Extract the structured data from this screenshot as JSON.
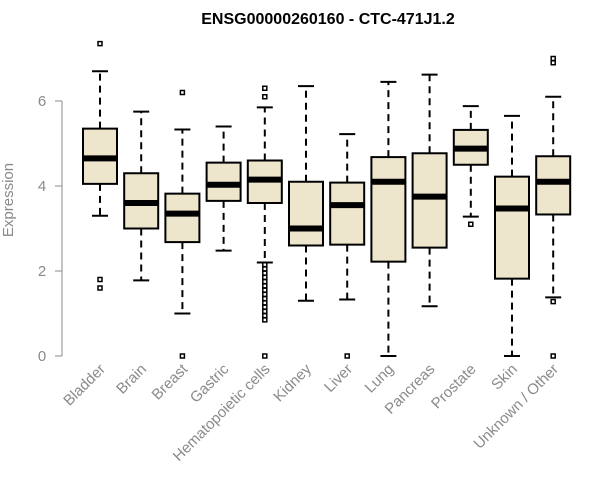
{
  "chart_data": {
    "type": "boxplot",
    "title": "ENSG00000260160 - CTC-471J1.2",
    "xlabel": "",
    "ylabel": "Expression",
    "ylim": [
      0,
      7.4
    ],
    "yticks": [
      0,
      2,
      4,
      6
    ],
    "box_color": "#ede6cc",
    "categories": [
      "Bladder",
      "Brain",
      "Breast",
      "Gastric",
      "Hematopoietic cells",
      "Kidney",
      "Liver",
      "Lung",
      "Pancreas",
      "Prostate",
      "Skin",
      "Unknown / Other"
    ],
    "boxes": [
      {
        "name": "Bladder",
        "whisker_low": 3.3,
        "q1": 4.05,
        "median": 4.65,
        "q3": 5.35,
        "whisker_high": 6.7,
        "outliers": [
          7.35,
          1.8,
          1.6
        ]
      },
      {
        "name": "Brain",
        "whisker_low": 1.78,
        "q1": 3.0,
        "median": 3.6,
        "q3": 4.3,
        "whisker_high": 5.75,
        "outliers": []
      },
      {
        "name": "Breast",
        "whisker_low": 1.0,
        "q1": 2.68,
        "median": 3.35,
        "q3": 3.82,
        "whisker_high": 5.33,
        "outliers": [
          6.2,
          0.0
        ]
      },
      {
        "name": "Gastric",
        "whisker_low": 2.48,
        "q1": 3.65,
        "median": 4.03,
        "q3": 4.55,
        "whisker_high": 5.4,
        "outliers": []
      },
      {
        "name": "Hematopoietic cells",
        "whisker_low": 2.2,
        "q1": 3.6,
        "median": 4.15,
        "q3": 4.6,
        "whisker_high": 5.85,
        "outliers": [
          6.3,
          6.1,
          2.15,
          2.05,
          1.95,
          1.85,
          1.75,
          1.65,
          1.55,
          1.45,
          1.35,
          1.25,
          1.15,
          1.05,
          0.95,
          0.85,
          0.0
        ]
      },
      {
        "name": "Kidney",
        "whisker_low": 1.3,
        "q1": 2.6,
        "median": 3.0,
        "q3": 4.1,
        "whisker_high": 6.35,
        "outliers": []
      },
      {
        "name": "Liver",
        "whisker_low": 1.33,
        "q1": 2.62,
        "median": 3.55,
        "q3": 4.08,
        "whisker_high": 5.22,
        "outliers": [
          0.0
        ]
      },
      {
        "name": "Lung",
        "whisker_low": 0.0,
        "q1": 2.22,
        "median": 4.1,
        "q3": 4.68,
        "whisker_high": 6.45,
        "outliers": []
      },
      {
        "name": "Pancreas",
        "whisker_low": 1.17,
        "q1": 2.55,
        "median": 3.75,
        "q3": 4.77,
        "whisker_high": 6.62,
        "outliers": []
      },
      {
        "name": "Prostate",
        "whisker_low": 3.28,
        "q1": 4.5,
        "median": 4.88,
        "q3": 5.32,
        "whisker_high": 5.88,
        "outliers": [
          3.1
        ]
      },
      {
        "name": "Skin",
        "whisker_low": 0.0,
        "q1": 1.82,
        "median": 3.47,
        "q3": 4.22,
        "whisker_high": 5.65,
        "outliers": []
      },
      {
        "name": "Unknown / Other",
        "whisker_low": 1.38,
        "q1": 3.33,
        "median": 4.1,
        "q3": 4.7,
        "whisker_high": 6.1,
        "outliers": [
          7.0,
          6.9,
          1.28,
          0.0
        ]
      }
    ]
  }
}
